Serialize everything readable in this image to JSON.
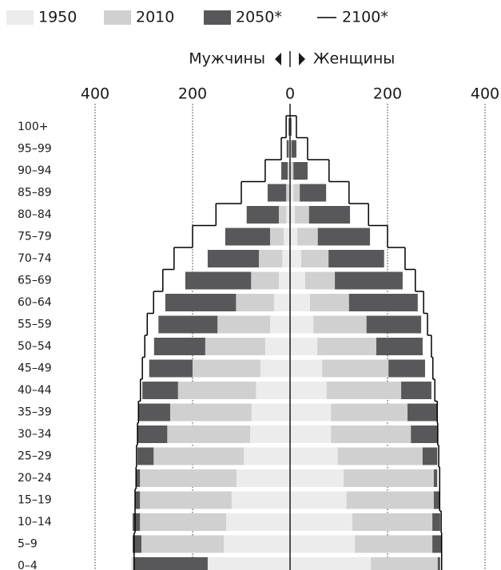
{
  "chart_data": {
    "type": "population_pyramid",
    "left_label": "Мужчины",
    "right_label": "Женщины",
    "categories": [
      "100+",
      "95–99",
      "90–94",
      "85–89",
      "80–84",
      "75–79",
      "70–74",
      "65–69",
      "60–64",
      "55–59",
      "50–54",
      "45–49",
      "40–44",
      "35–39",
      "30–34",
      "25–29",
      "20–24",
      "15–19",
      "10–14",
      "5–9",
      "0–4"
    ],
    "xlim": [
      0,
      400
    ],
    "xticks": [
      0,
      200,
      400
    ],
    "grid": true,
    "series": [
      {
        "name": "1950",
        "color": "#ececec",
        "kind": "bar",
        "male": [
          0,
          0,
          0,
          1,
          8,
          13,
          16,
          23,
          33,
          41,
          51,
          61,
          70,
          79,
          82,
          95,
          110,
          120,
          131,
          136,
          169
        ],
        "female": [
          0,
          0,
          2,
          7,
          10,
          15,
          23,
          31,
          41,
          48,
          56,
          66,
          75,
          84,
          84,
          98,
          110,
          116,
          128,
          133,
          166
        ]
      },
      {
        "name": "2010",
        "color": "#d0d0d1",
        "kind": "bar",
        "male": [
          0,
          3,
          5,
          8,
          23,
          41,
          64,
          80,
          111,
          149,
          174,
          200,
          230,
          246,
          252,
          280,
          308,
          308,
          308,
          305,
          325
        ],
        "female": [
          0,
          3,
          7,
          20,
          39,
          57,
          79,
          92,
          121,
          157,
          177,
          202,
          228,
          241,
          248,
          272,
          295,
          295,
          292,
          292,
          303
        ]
      },
      {
        "name": "2050*",
        "color": "#58585a",
        "kind": "bar",
        "male": [
          3,
          7,
          18,
          46,
          89,
          133,
          169,
          215,
          256,
          270,
          279,
          289,
          303,
          310,
          313,
          313,
          316,
          318,
          323,
          323,
          320
        ],
        "female": [
          3,
          13,
          36,
          74,
          123,
          164,
          193,
          231,
          262,
          269,
          272,
          277,
          290,
          302,
          303,
          302,
          302,
          307,
          308,
          310,
          308
        ]
      },
      {
        "name": "2100*",
        "color": "#000000",
        "kind": "step",
        "male": [
          8,
          18,
          51,
          100,
          152,
          200,
          238,
          261,
          280,
          293,
          298,
          303,
          307,
          311,
          313,
          315,
          316,
          318,
          318,
          320,
          320
        ],
        "female": [
          13,
          36,
          80,
          121,
          161,
          200,
          236,
          257,
          274,
          282,
          290,
          293,
          297,
          302,
          303,
          305,
          307,
          307,
          310,
          311,
          311
        ]
      }
    ]
  }
}
